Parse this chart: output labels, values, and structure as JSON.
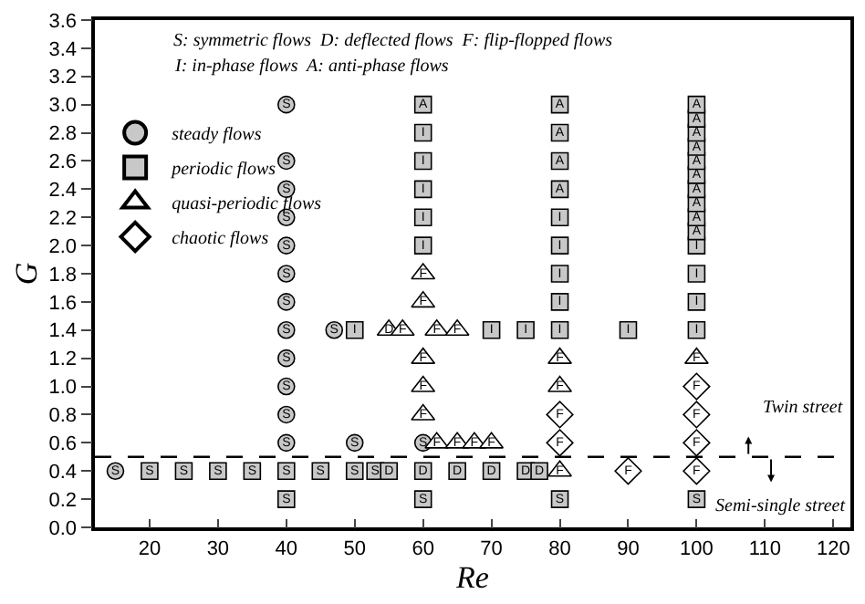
{
  "chart_data": {
    "type": "scatter",
    "xlabel": "Re",
    "ylabel": "G",
    "xlim": [
      12,
      122.5
    ],
    "ylim": [
      0,
      3.6
    ],
    "xticks": [
      20,
      30,
      40,
      50,
      60,
      70,
      80,
      90,
      100,
      110,
      120
    ],
    "yticks": [
      {
        "value": 0,
        "label": "0.0"
      },
      {
        "value": 0.2,
        "label": "0.2"
      },
      {
        "value": 0.4,
        "label": "0.4"
      },
      {
        "value": 0.6,
        "label": "0.6"
      },
      {
        "value": 0.8,
        "label": "0.8"
      },
      {
        "value": 1,
        "label": "1.0"
      },
      {
        "value": 1.2,
        "label": "1.2"
      },
      {
        "value": 1.4,
        "label": "1.4"
      },
      {
        "value": 1.6,
        "label": "1.6"
      },
      {
        "value": 1.8,
        "label": "1.8"
      },
      {
        "value": 2,
        "label": "2.0"
      },
      {
        "value": 2.2,
        "label": "2.2"
      },
      {
        "value": 2.4,
        "label": "2.4"
      },
      {
        "value": 2.6,
        "label": "2.6"
      },
      {
        "value": 2.8,
        "label": "2.8"
      },
      {
        "value": 3,
        "label": "3.0"
      },
      {
        "value": 3.2,
        "label": "3.2"
      },
      {
        "value": 3.4,
        "label": "3.4"
      },
      {
        "value": 3.6,
        "label": "3.6"
      }
    ],
    "legend": "top left",
    "series": [
      {
        "name": "steady flows",
        "marker": "circle",
        "color": "#c8c8c8",
        "x": [
          15,
          40,
          40,
          40,
          40,
          40,
          40,
          40,
          40,
          40,
          40,
          40,
          40,
          47,
          50,
          60
        ],
        "values": [
          0.4,
          0.6,
          0.8,
          1.0,
          1.2,
          1.4,
          1.6,
          1.8,
          2.0,
          2.2,
          2.4,
          2.6,
          3.0,
          1.4,
          0.6,
          0.6
        ],
        "value_labels": [
          "S",
          "S",
          "S",
          "S",
          "S",
          "S",
          "S",
          "S",
          "S",
          "S",
          "S",
          "S",
          "S",
          "S",
          "S",
          "S"
        ]
      },
      {
        "name": "periodic flows",
        "marker": "square",
        "color": "#c8c8c8",
        "x": [
          20,
          25,
          30,
          35,
          40,
          45,
          50,
          53,
          55,
          60,
          65,
          70,
          75,
          77,
          40,
          60,
          80,
          100,
          50,
          70,
          75,
          80,
          90,
          100,
          60,
          60,
          60,
          60,
          60,
          60,
          80,
          80,
          80,
          80,
          80,
          80,
          80,
          80,
          100,
          100,
          100,
          100,
          100,
          100,
          100,
          100,
          100,
          100,
          100,
          100,
          100
        ],
        "values": [
          0.4,
          0.4,
          0.4,
          0.4,
          0.4,
          0.4,
          0.4,
          0.4,
          0.4,
          0.4,
          0.4,
          0.4,
          0.4,
          0.4,
          0.2,
          0.2,
          0.2,
          0.2,
          1.4,
          1.4,
          1.4,
          1.4,
          1.4,
          1.4,
          2.0,
          2.2,
          2.4,
          2.6,
          2.8,
          3.0,
          1.6,
          1.8,
          2.0,
          2.2,
          2.4,
          2.6,
          2.8,
          3.0,
          1.6,
          1.8,
          2.0,
          2.1,
          2.2,
          2.3,
          2.4,
          2.5,
          2.6,
          2.7,
          2.8,
          2.9,
          3.0
        ],
        "value_labels": [
          "S",
          "S",
          "S",
          "S",
          "S",
          "S",
          "S",
          "S",
          "D",
          "D",
          "D",
          "D",
          "D",
          "D",
          "S",
          "S",
          "S",
          "S",
          "I",
          "I",
          "I",
          "I",
          "I",
          "I",
          "I",
          "I",
          "I",
          "I",
          "I",
          "A",
          "I",
          "I",
          "I",
          "I",
          "A",
          "A",
          "A",
          "A",
          "I",
          "I",
          "I",
          "A",
          "A",
          "A",
          "A",
          "A",
          "A",
          "A",
          "A",
          "A",
          "A"
        ]
      },
      {
        "name": "quasi-periodic flows",
        "marker": "triangle",
        "color": "#ffffff",
        "x": [
          62,
          65,
          67.5,
          70,
          60,
          60,
          60,
          60,
          60,
          55,
          57,
          62,
          65,
          80,
          80,
          80,
          100
        ],
        "values": [
          0.6,
          0.6,
          0.6,
          0.6,
          0.8,
          1.0,
          1.2,
          1.6,
          1.8,
          1.4,
          1.4,
          1.4,
          1.4,
          0.4,
          1.0,
          1.2,
          1.2
        ],
        "value_labels": [
          "F",
          "F",
          "F",
          "F",
          "F",
          "F",
          "F",
          "F",
          "F",
          "D",
          "F",
          "F",
          "F",
          "F",
          "F",
          "F",
          "F"
        ]
      },
      {
        "name": "chaotic flows",
        "marker": "diamond",
        "color": "#ffffff",
        "x": [
          80,
          80,
          90,
          100,
          100,
          100,
          100
        ],
        "values": [
          0.6,
          0.8,
          0.4,
          0.4,
          0.6,
          0.8,
          1.0
        ],
        "value_labels": [
          "F",
          "F",
          "F",
          "F",
          "F",
          "F",
          "F"
        ]
      }
    ],
    "ref_lines": [
      {
        "axis": "y",
        "value": 0.5,
        "line_style": "dashed",
        "color": "#000000"
      }
    ],
    "annotations": [
      "S: symmetric flows  D: deflected flows  F: flip-flopped flows",
      "I: in-phase flows  A: anti-phase flows",
      "Twin street",
      "Semi-single street"
    ]
  }
}
